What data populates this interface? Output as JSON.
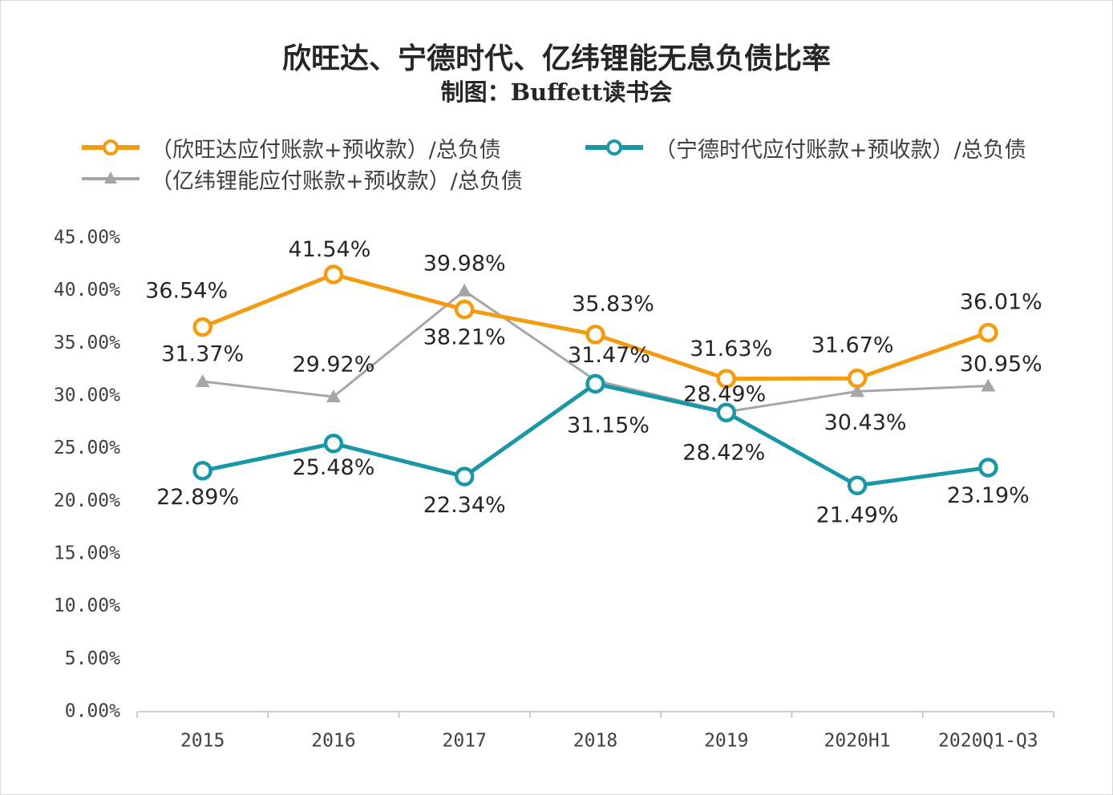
{
  "title": "欣旺达、宁德时代、亿纬锂能无息负债比率",
  "subtitle": "制图：Buffett读书会",
  "colors": {
    "xwd": "#F39C12",
    "catl": "#1A97A6",
    "eve": "#A6A6A6",
    "axis": "#BFBFBF",
    "text": "#262626",
    "tick": "#404040"
  },
  "chart_data": {
    "type": "line",
    "categories": [
      "2015",
      "2016",
      "2017",
      "2018",
      "2019",
      "2020H1",
      "2020Q1-Q3"
    ],
    "ylim": [
      0,
      45
    ],
    "yticks": [
      "0.00%",
      "5.00%",
      "10.00%",
      "15.00%",
      "20.00%",
      "25.00%",
      "30.00%",
      "35.00%",
      "40.00%",
      "45.00%"
    ],
    "grid": false,
    "legend_position": "top",
    "series": [
      {
        "name": "（欣旺达应付账款+预收款）/总负债",
        "key": "xwd",
        "marker": "circle",
        "values": [
          36.54,
          41.54,
          38.21,
          35.83,
          31.63,
          31.67,
          36.01
        ],
        "labels": [
          "36.54%",
          "41.54%",
          "38.21%",
          "35.83%",
          "31.63%",
          "31.67%",
          "36.01%"
        ]
      },
      {
        "name": "（宁德时代应付账款+预收款）/总负债",
        "key": "catl",
        "marker": "circle",
        "values": [
          22.89,
          25.48,
          22.34,
          31.15,
          28.42,
          21.49,
          23.19
        ],
        "labels": [
          "22.89%",
          "25.48%",
          "22.34%",
          "31.15%",
          "28.42%",
          "21.49%",
          "23.19%"
        ]
      },
      {
        "name": "（亿纬锂能应付账款+预收款）/总负债",
        "key": "eve",
        "marker": "triangle",
        "values": [
          31.37,
          29.92,
          39.98,
          31.47,
          28.49,
          30.43,
          30.95
        ],
        "labels": [
          "31.37%",
          "29.92%",
          "39.98%",
          "31.47%",
          "28.49%",
          "30.43%",
          "30.95%"
        ]
      }
    ]
  }
}
